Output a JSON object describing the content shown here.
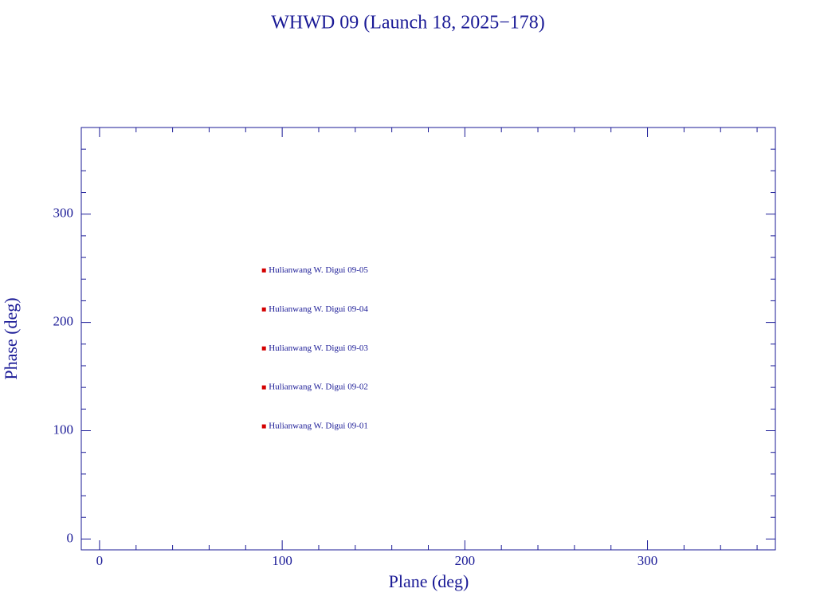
{
  "chart_data": {
    "type": "scatter",
    "title": "WHWD 09 (Launch 18, 2025−178)",
    "xlabel": "Plane (deg)",
    "ylabel": "Phase (deg)",
    "x": [
      90,
      90,
      90,
      90,
      90
    ],
    "values": [
      104,
      140,
      176,
      212,
      248
    ],
    "labels": [
      "Hulianwang W. Digui 09-01",
      "Hulianwang W. Digui 09-02",
      "Hulianwang W. Digui 09-03",
      "Hulianwang W. Digui 09-04",
      "Hulianwang W. Digui 09-05"
    ],
    "color": "#d40000",
    "axis_color": "#1a1a96",
    "xlim": [
      -10,
      370
    ],
    "ylim": [
      -10,
      380
    ],
    "xticks": [
      0,
      100,
      200,
      300
    ],
    "yticks": [
      0,
      100,
      200,
      300
    ],
    "xminorticks": [
      20,
      40,
      60,
      80,
      120,
      140,
      160,
      180,
      220,
      240,
      260,
      280,
      320,
      340,
      360
    ],
    "yminorticks": [
      20,
      40,
      60,
      80,
      120,
      140,
      160,
      180,
      220,
      240,
      260,
      280,
      320,
      340,
      360
    ]
  }
}
